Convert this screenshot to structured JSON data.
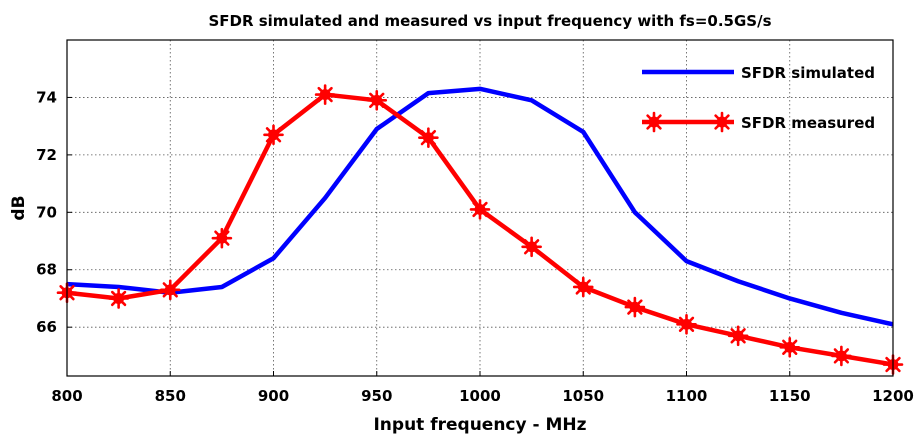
{
  "chart_data": {
    "type": "line",
    "title": "SFDR simulated and measured vs input frequency with fs=0.5GS/s",
    "xlabel": "Input frequency - MHz",
    "ylabel": "dB",
    "xlim": [
      800,
      1200
    ],
    "ylim": [
      64.3,
      76.0
    ],
    "xticks": [
      800,
      850,
      900,
      950,
      1000,
      1050,
      1100,
      1150,
      1200
    ],
    "yticks": [
      66,
      68,
      70,
      72,
      74
    ],
    "grid": true,
    "legend_position": "top-right",
    "series": [
      {
        "name": "SFDR simulated",
        "color": "#0000ff",
        "marker": "none",
        "x": [
          800,
          825,
          850,
          875,
          900,
          925,
          950,
          975,
          1000,
          1025,
          1050,
          1075,
          1100,
          1125,
          1150,
          1175,
          1200
        ],
        "y": [
          67.5,
          67.4,
          67.2,
          67.4,
          68.4,
          70.5,
          72.9,
          74.15,
          74.3,
          73.9,
          72.8,
          70.0,
          68.3,
          67.6,
          67.0,
          66.5,
          66.1
        ]
      },
      {
        "name": "SFDR measured",
        "color": "#ff0000",
        "marker": "star",
        "x": [
          800,
          825,
          850,
          875,
          900,
          925,
          950,
          975,
          1000,
          1025,
          1050,
          1075,
          1100,
          1125,
          1150,
          1175,
          1200
        ],
        "y": [
          67.2,
          67.0,
          67.3,
          69.1,
          72.7,
          74.1,
          73.9,
          72.6,
          70.1,
          68.8,
          67.4,
          66.7,
          66.1,
          65.7,
          65.3,
          65.0,
          64.7
        ]
      }
    ]
  }
}
